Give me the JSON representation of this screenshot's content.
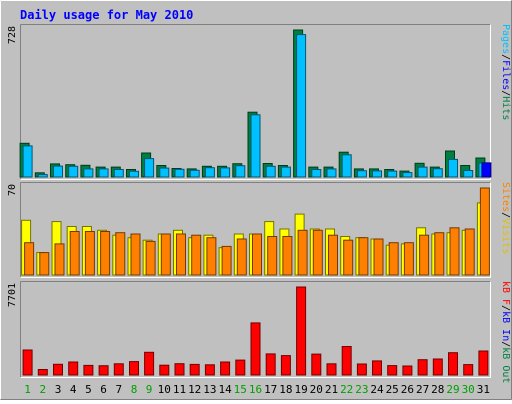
{
  "chart_data": [
    {
      "type": "bar",
      "title": "Daily usage for May 2010",
      "categories": [
        "1",
        "2",
        "3",
        "4",
        "5",
        "6",
        "7",
        "8",
        "9",
        "10",
        "11",
        "12",
        "13",
        "14",
        "15",
        "16",
        "17",
        "18",
        "19",
        "20",
        "21",
        "22",
        "23",
        "24",
        "25",
        "26",
        "27",
        "28",
        "29",
        "30",
        "31"
      ],
      "weekend_days": [
        "1",
        "2",
        "8",
        "9",
        "15",
        "16",
        "22",
        "23",
        "29",
        "30"
      ],
      "ylim": [
        0,
        728
      ],
      "ymax_label": "728",
      "right_label_parts": [
        "Pages",
        "/",
        "Files",
        "/",
        "Hits"
      ],
      "series": [
        {
          "name": "Hits",
          "color": "#008040",
          "values": [
            167,
            21,
            65,
            61,
            58,
            49,
            49,
            37,
            119,
            57,
            42,
            40,
            53,
            53,
            66,
            321,
            67,
            57,
            728,
            49,
            49,
            123,
            40,
            40,
            37,
            29,
            68,
            49,
            129,
            57,
            94
          ]
        },
        {
          "name": "Files",
          "color": "#00c0ff",
          "values": [
            154,
            12,
            54,
            53,
            40,
            40,
            37,
            28,
            91,
            44,
            38,
            33,
            46,
            45,
            56,
            308,
            53,
            49,
            705,
            37,
            40,
            110,
            31,
            30,
            29,
            22,
            49,
            41,
            87,
            32,
            70
          ]
        },
        {
          "name": "Pages",
          "color": "#0000ff",
          "values": [
            0,
            0,
            0,
            0,
            0,
            0,
            0,
            0,
            0,
            0,
            0,
            0,
            0,
            0,
            0,
            0,
            0,
            0,
            0,
            0,
            0,
            0,
            0,
            0,
            0,
            0,
            0,
            0,
            0,
            0,
            70
          ]
        }
      ]
    },
    {
      "type": "bar",
      "ylim": [
        0,
        70
      ],
      "ymax_label": "70",
      "right_label_parts": [
        "Sites",
        "/",
        "Visits"
      ],
      "series": [
        {
          "name": "Visits",
          "color": "#ffff00",
          "values": [
            44,
            18,
            43,
            39,
            39,
            36,
            32,
            30,
            28,
            33,
            36,
            30,
            32,
            22,
            33,
            33,
            43,
            37,
            49,
            37,
            37,
            31,
            30,
            29,
            24,
            25,
            38,
            33,
            34,
            36,
            58
          ]
        },
        {
          "name": "Sites",
          "color": "#ff8000",
          "values": [
            26,
            18,
            25,
            35,
            35,
            35,
            34,
            33,
            27,
            33,
            33,
            32,
            30,
            23,
            29,
            33,
            31,
            31,
            36,
            36,
            32,
            28,
            30,
            29,
            26,
            26,
            32,
            34,
            38,
            37,
            70
          ]
        }
      ]
    },
    {
      "type": "bar",
      "ylim": [
        0,
        7701
      ],
      "ymax_label": "7701",
      "right_label_parts": [
        "kB F",
        "/",
        "kB In",
        "/",
        "kB Out"
      ],
      "series": [
        {
          "name": "kB F",
          "color": "#ff0000",
          "values": [
            2190,
            480,
            940,
            1140,
            840,
            810,
            980,
            1170,
            1990,
            860,
            990,
            930,
            890,
            1140,
            1300,
            4560,
            1850,
            1700,
            7701,
            1830,
            980,
            2490,
            960,
            1230,
            820,
            790,
            1340,
            1400,
            1950,
            910,
            2100
          ]
        },
        {
          "name": "kB In",
          "color": "#0000ff",
          "values": [
            0,
            0,
            0,
            0,
            0,
            0,
            0,
            0,
            0,
            0,
            0,
            0,
            0,
            0,
            0,
            0,
            0,
            0,
            0,
            0,
            0,
            0,
            0,
            0,
            0,
            0,
            0,
            0,
            0,
            0,
            0
          ]
        },
        {
          "name": "kB Out",
          "color": "#008040",
          "values": [
            0,
            0,
            0,
            0,
            0,
            0,
            0,
            0,
            0,
            0,
            0,
            0,
            0,
            0,
            0,
            0,
            0,
            0,
            0,
            0,
            0,
            0,
            0,
            0,
            0,
            0,
            0,
            0,
            0,
            0,
            0
          ]
        }
      ]
    }
  ],
  "colors": {
    "background": "#c0c0c0",
    "panel_bg": "#c0c0c0",
    "title_color": "#0000ff",
    "weekday_label": "#000000",
    "weekend_label": "#00a000",
    "label_palette": {
      "Pages": "#00c0ff",
      "Files": "#0000ff",
      "Hits": "#008040",
      "Sites": "#ff8000",
      "Visits": "#e0c000",
      "kB F": "#ff0000",
      "kB In": "#0000ff",
      "kB Out": "#008040",
      "/": "#000000"
    }
  }
}
